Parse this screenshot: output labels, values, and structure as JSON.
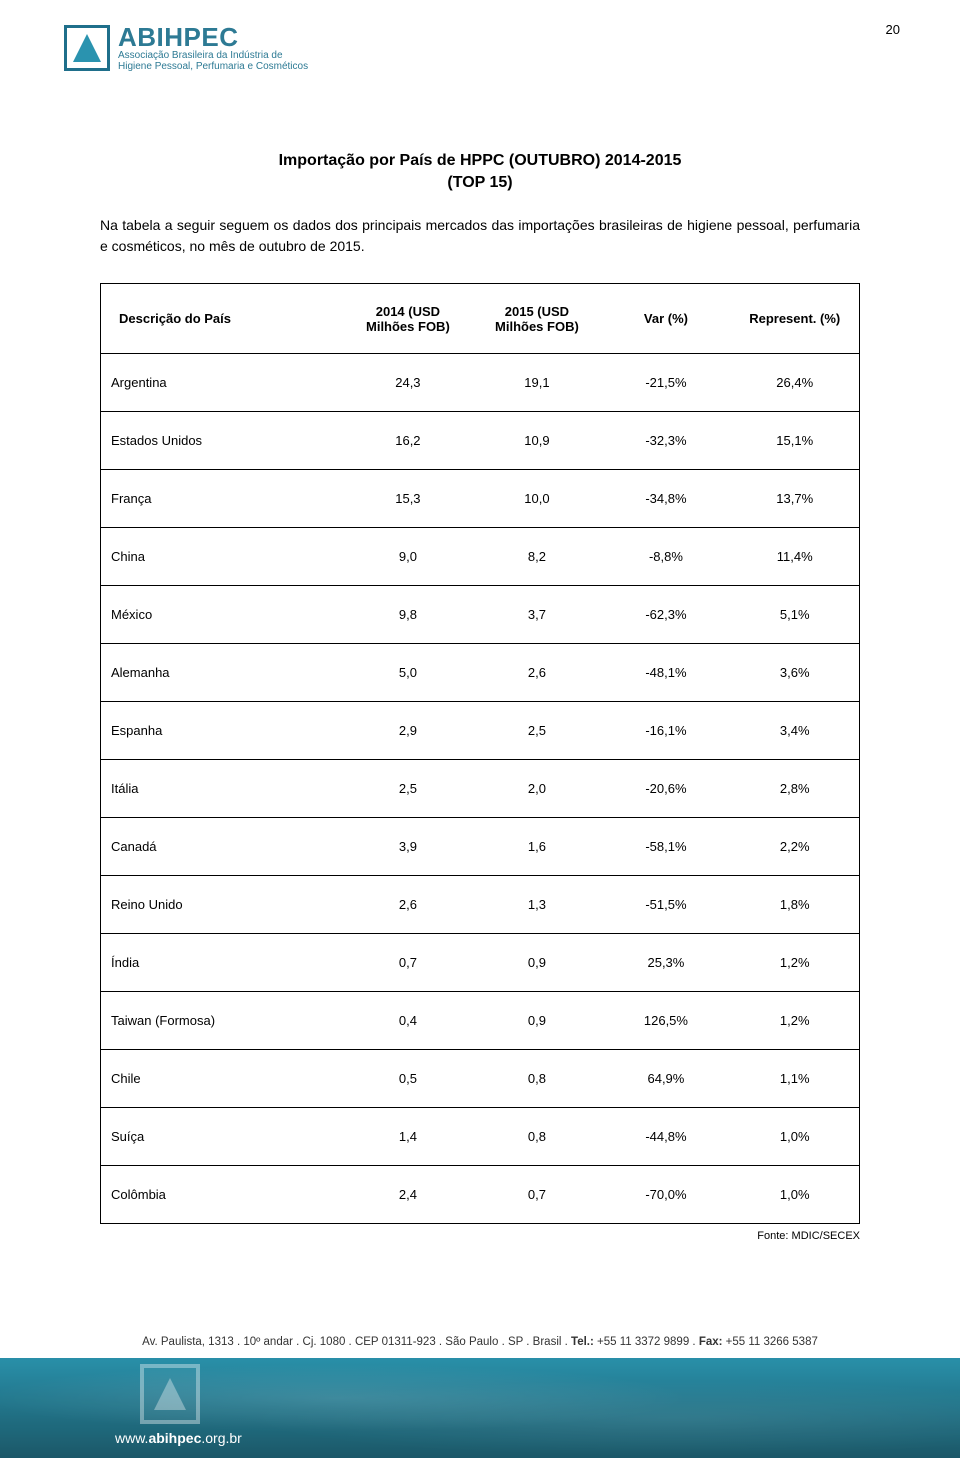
{
  "page_number": "20",
  "logo": {
    "title": "ABIHPEC",
    "sub1": "Associação Brasileira da Indústria de",
    "sub2": "Higiene Pessoal, Perfumaria e Cosméticos"
  },
  "title_line1": "Importação por País de HPPC (OUTUBRO) 2014-2015",
  "title_line2": "(TOP 15)",
  "intro": "Na tabela a seguir seguem os dados dos principais mercados das importações brasileiras de higiene pessoal, perfumaria e cosméticos, no mês de outubro de 2015.",
  "table": {
    "columns": [
      "Descrição do País",
      "2014 (USD Milhões FOB)",
      "2015 (USD Milhões FOB)",
      "Var (%)",
      "Represent. (%)"
    ],
    "rows": [
      [
        "Argentina",
        "24,3",
        "19,1",
        "-21,5%",
        "26,4%"
      ],
      [
        "Estados Unidos",
        "16,2",
        "10,9",
        "-32,3%",
        "15,1%"
      ],
      [
        "França",
        "15,3",
        "10,0",
        "-34,8%",
        "13,7%"
      ],
      [
        "China",
        "9,0",
        "8,2",
        "-8,8%",
        "11,4%"
      ],
      [
        "México",
        "9,8",
        "3,7",
        "-62,3%",
        "5,1%"
      ],
      [
        "Alemanha",
        "5,0",
        "2,6",
        "-48,1%",
        "3,6%"
      ],
      [
        "Espanha",
        "2,9",
        "2,5",
        "-16,1%",
        "3,4%"
      ],
      [
        "Itália",
        "2,5",
        "2,0",
        "-20,6%",
        "2,8%"
      ],
      [
        "Canadá",
        "3,9",
        "1,6",
        "-58,1%",
        "2,2%"
      ],
      [
        "Reino Unido",
        "2,6",
        "1,3",
        "-51,5%",
        "1,8%"
      ],
      [
        "Índia",
        "0,7",
        "0,9",
        "25,3%",
        "1,2%"
      ],
      [
        "Taiwan (Formosa)",
        "0,4",
        "0,9",
        "126,5%",
        "1,2%"
      ],
      [
        "Chile",
        "0,5",
        "0,8",
        "64,9%",
        "1,1%"
      ],
      [
        "Suíça",
        "1,4",
        "0,8",
        "-44,8%",
        "1,0%"
      ],
      [
        "Colômbia",
        "2,4",
        "0,7",
        "-70,0%",
        "1,0%"
      ]
    ]
  },
  "source": "Fonte: MDIC/SECEX",
  "footer": {
    "address_html": "Av. Paulista, 1313 . 10º andar . Cj. 1080 . CEP 01311-923 . São Paulo . SP . Brasil . <b>Tel.:</b> +55 11 3372 9899 . <b>Fax:</b> +55 11 3266 5387",
    "url_prefix": "www.",
    "url_bold": "abihpec",
    "url_suffix": ".org.br"
  },
  "colors": {
    "brand": "#2d7a94",
    "band_top": "#1e8aa5",
    "band_bottom": "#0f4f60",
    "text": "#000000",
    "bg": "#ffffff"
  }
}
